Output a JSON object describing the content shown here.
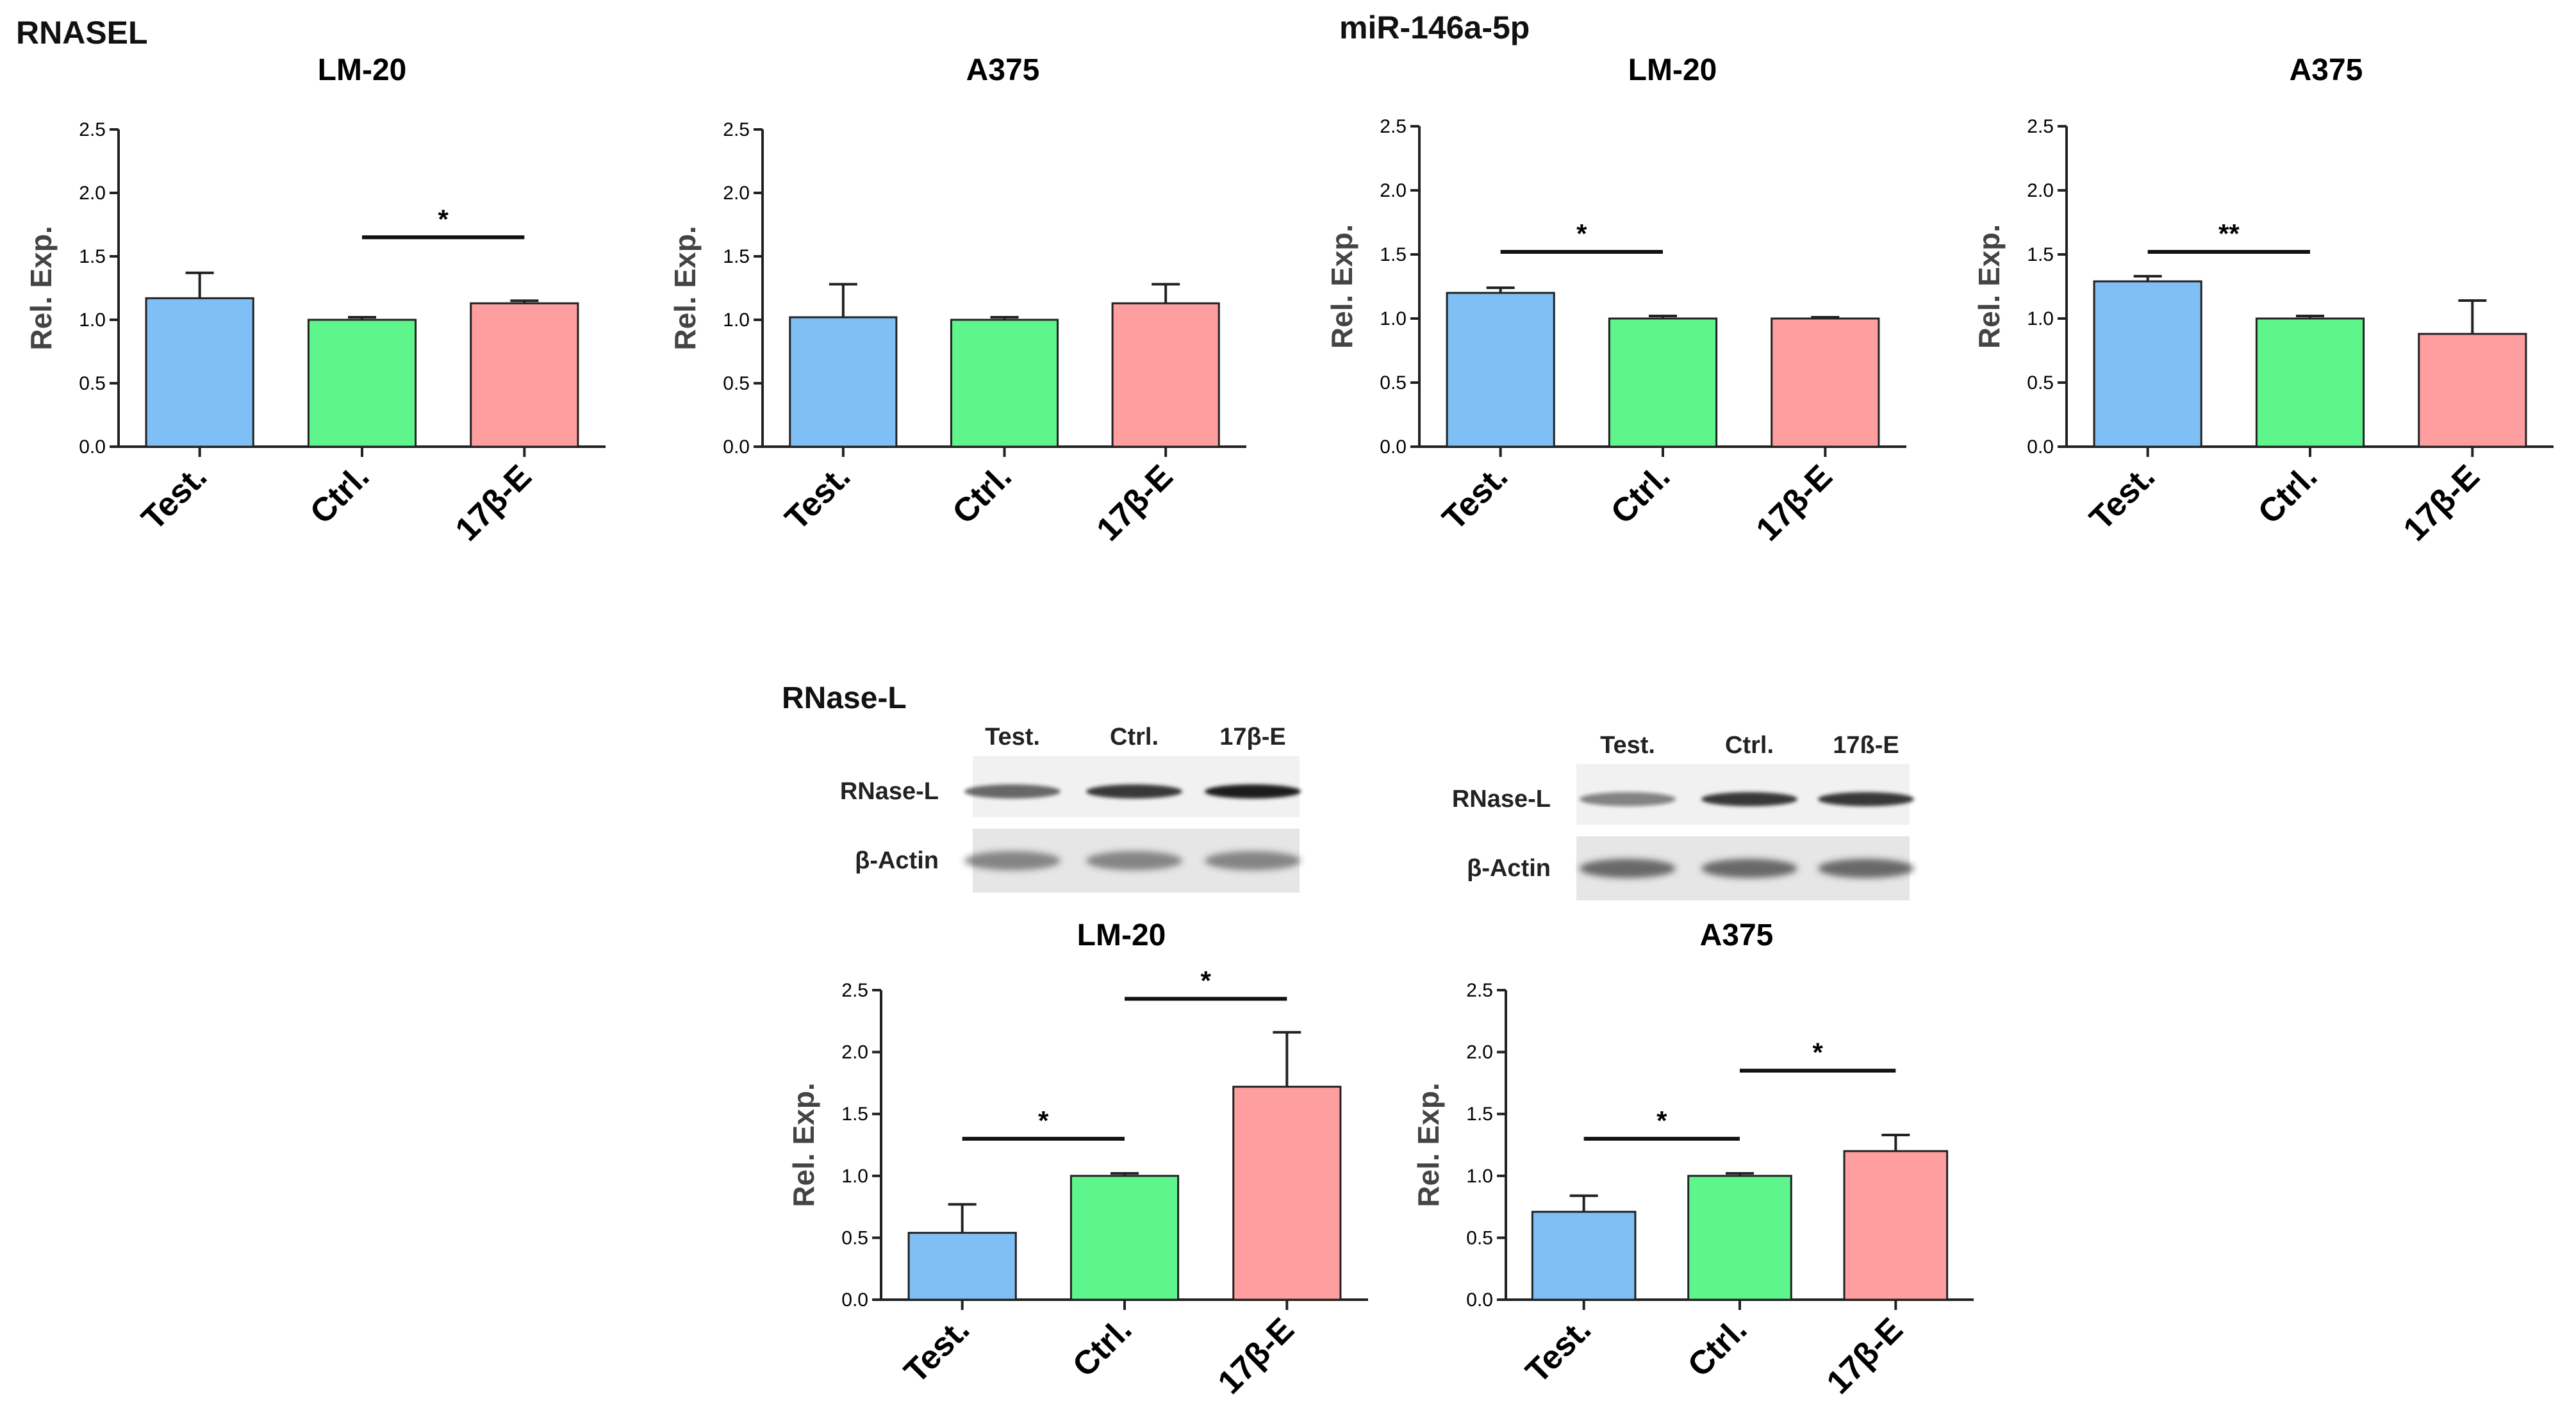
{
  "sections": {
    "rnasel": "RNASEL",
    "mir": "miR-146a-5p",
    "western": "RNase-L"
  },
  "blots": [
    {
      "lanes": [
        "Test.",
        "Ctrl.",
        "17β-E"
      ],
      "bands": [
        "RNase-L",
        "β-Actin"
      ],
      "rnase_intensity": [
        0.65,
        0.85,
        1.0
      ],
      "actin_intensity": [
        0.55,
        0.55,
        0.55
      ]
    },
    {
      "lanes": [
        "Test.",
        "Ctrl.",
        "17ß-E"
      ],
      "bands": [
        "RNase-L",
        "β-Actin"
      ],
      "rnase_intensity": [
        0.5,
        0.85,
        0.85
      ],
      "actin_intensity": [
        0.7,
        0.7,
        0.7
      ]
    }
  ],
  "colors": {
    "test": "#7fbff5",
    "ctrl": "#5ef58d",
    "estradiol": "#ff9e9e"
  },
  "chart_data": [
    {
      "type": "bar",
      "section": "RNASEL",
      "title": "LM-20",
      "categories": [
        "Test.",
        "Ctrl.",
        "17β-E"
      ],
      "values": [
        1.17,
        1.0,
        1.13
      ],
      "errors": [
        0.2,
        0.02,
        0.02
      ],
      "ylabel": "Rel. Exp.",
      "ylim": [
        0,
        2.5
      ],
      "yticks": [
        "0.0",
        "0.5",
        "1.0",
        "1.5",
        "2.0",
        "2.5"
      ],
      "significance": [
        {
          "from": 1,
          "to": 2,
          "label": "*",
          "level": 1.65
        }
      ]
    },
    {
      "type": "bar",
      "section": "RNASEL",
      "title": "A375",
      "categories": [
        "Test.",
        "Ctrl.",
        "17β-E"
      ],
      "values": [
        1.02,
        1.0,
        1.13
      ],
      "errors": [
        0.26,
        0.02,
        0.15
      ],
      "ylabel": "Rel. Exp.",
      "ylim": [
        0,
        2.5
      ],
      "yticks": [
        "0.0",
        "0.5",
        "1.0",
        "1.5",
        "2.0",
        "2.5"
      ],
      "significance": []
    },
    {
      "type": "bar",
      "section": "miR-146a-5p",
      "title": "LM-20",
      "categories": [
        "Test.",
        "Ctrl.",
        "17β-E"
      ],
      "values": [
        1.2,
        1.0,
        1.0
      ],
      "errors": [
        0.04,
        0.02,
        0.01
      ],
      "ylabel": "Rel. Exp.",
      "ylim": [
        0,
        2.5
      ],
      "yticks": [
        "0.0",
        "0.5",
        "1.0",
        "1.5",
        "2.0",
        "2.5"
      ],
      "significance": [
        {
          "from": 0,
          "to": 1,
          "label": "*",
          "level": 1.52
        }
      ]
    },
    {
      "type": "bar",
      "section": "miR-146a-5p",
      "title": "A375",
      "categories": [
        "Test.",
        "Ctrl.",
        "17β-E"
      ],
      "values": [
        1.29,
        1.0,
        0.88
      ],
      "errors": [
        0.04,
        0.02,
        0.26
      ],
      "ylabel": "Rel. Exp.",
      "ylim": [
        0,
        2.5
      ],
      "yticks": [
        "0.0",
        "0.5",
        "1.0",
        "1.5",
        "2.0",
        "2.5"
      ],
      "significance": [
        {
          "from": 0,
          "to": 1,
          "label": "**",
          "level": 1.52
        }
      ]
    },
    {
      "type": "bar",
      "section": "RNase-L",
      "title": "LM-20",
      "categories": [
        "Test.",
        "Ctrl.",
        "17β-E"
      ],
      "values": [
        0.54,
        1.0,
        1.72
      ],
      "errors": [
        0.23,
        0.02,
        0.44
      ],
      "ylabel": "Rel. Exp.",
      "ylim": [
        0,
        2.5
      ],
      "yticks": [
        "0.0",
        "0.5",
        "1.0",
        "1.5",
        "2.0",
        "2.5"
      ],
      "significance": [
        {
          "from": 0,
          "to": 1,
          "label": "*",
          "level": 1.3
        },
        {
          "from": 1,
          "to": 2,
          "label": "*",
          "level": 2.43
        }
      ]
    },
    {
      "type": "bar",
      "section": "RNase-L",
      "title": "A375",
      "categories": [
        "Test.",
        "Ctrl.",
        "17β-E"
      ],
      "values": [
        0.71,
        1.0,
        1.2
      ],
      "errors": [
        0.13,
        0.02,
        0.13
      ],
      "ylabel": "Rel. Exp.",
      "ylim": [
        0,
        2.5
      ],
      "yticks": [
        "0.0",
        "0.5",
        "1.0",
        "1.5",
        "2.0",
        "2.5"
      ],
      "significance": [
        {
          "from": 0,
          "to": 1,
          "label": "*",
          "level": 1.3
        },
        {
          "from": 1,
          "to": 2,
          "label": "*",
          "level": 1.85
        }
      ]
    }
  ]
}
